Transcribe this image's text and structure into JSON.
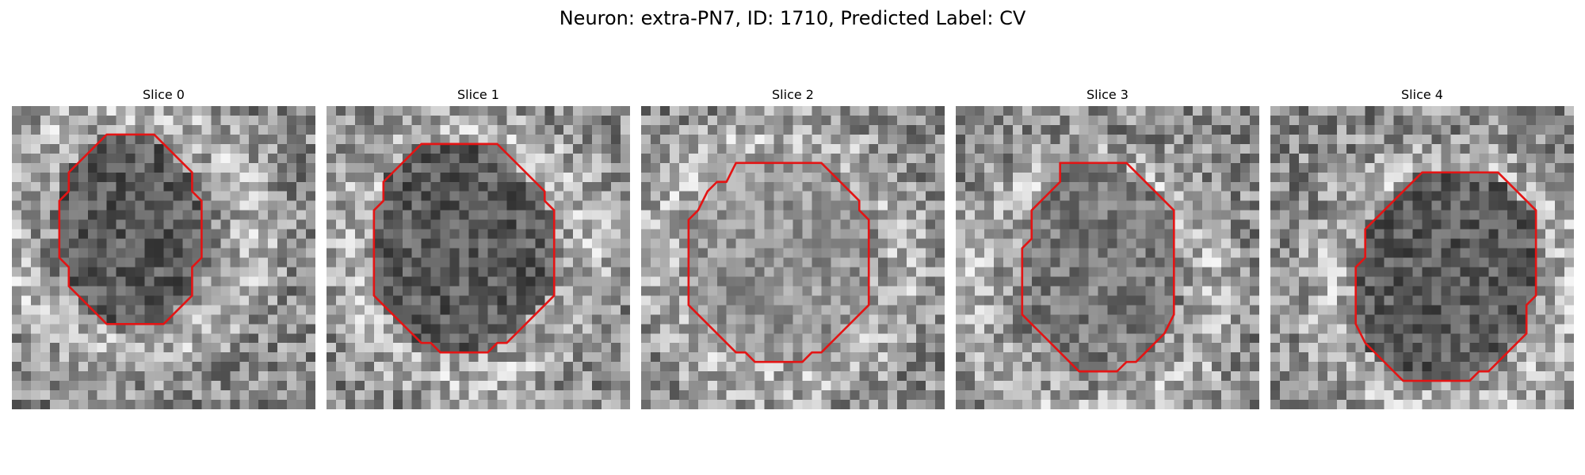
{
  "figure": {
    "title": "Neuron: extra-PN7, ID: 1710, Predicted Label: CV"
  },
  "style": {
    "contour_color": "#e31414"
  },
  "image_grid": {
    "rows": 32,
    "cols": 32
  },
  "panels": [
    {
      "title": "Slice 0",
      "seed": 11,
      "interior_tone": "dark",
      "outline": [
        [
          10,
          3
        ],
        [
          15,
          3
        ],
        [
          19,
          7
        ],
        [
          19,
          9
        ],
        [
          20,
          10
        ],
        [
          20,
          16
        ],
        [
          19,
          17
        ],
        [
          19,
          20
        ],
        [
          16,
          23
        ],
        [
          10,
          23
        ],
        [
          6,
          19
        ],
        [
          6,
          17
        ],
        [
          5,
          16
        ],
        [
          5,
          10
        ],
        [
          6,
          9
        ],
        [
          6,
          7
        ]
      ]
    },
    {
      "title": "Slice 1",
      "seed": 23,
      "interior_tone": "dark",
      "outline": [
        [
          10,
          4
        ],
        [
          18,
          4
        ],
        [
          22,
          8
        ],
        [
          23,
          9
        ],
        [
          23,
          10
        ],
        [
          24,
          11
        ],
        [
          24,
          20
        ],
        [
          22,
          22
        ],
        [
          20,
          24
        ],
        [
          19,
          25
        ],
        [
          18,
          25
        ],
        [
          17,
          26
        ],
        [
          12,
          26
        ],
        [
          11,
          25
        ],
        [
          10,
          25
        ],
        [
          5,
          20
        ],
        [
          5,
          11
        ],
        [
          6,
          10
        ],
        [
          6,
          8
        ],
        [
          9,
          5
        ]
      ]
    },
    {
      "title": "Slice 2",
      "seed": 37,
      "interior_tone": "light",
      "outline": [
        [
          10,
          6
        ],
        [
          19,
          6
        ],
        [
          22,
          9
        ],
        [
          23,
          10
        ],
        [
          23,
          11
        ],
        [
          24,
          12
        ],
        [
          24,
          21
        ],
        [
          21,
          24
        ],
        [
          19,
          26
        ],
        [
          18,
          26
        ],
        [
          17,
          27
        ],
        [
          12,
          27
        ],
        [
          11,
          26
        ],
        [
          10,
          26
        ],
        [
          5,
          21
        ],
        [
          5,
          12
        ],
        [
          6,
          11
        ],
        [
          7,
          9
        ],
        [
          8,
          8
        ],
        [
          9,
          8
        ]
      ]
    },
    {
      "title": "Slice 3",
      "seed": 53,
      "interior_tone": "medium",
      "outline": [
        [
          11,
          6
        ],
        [
          18,
          6
        ],
        [
          21,
          9
        ],
        [
          23,
          11
        ],
        [
          23,
          22
        ],
        [
          22,
          24
        ],
        [
          21,
          25
        ],
        [
          20,
          26
        ],
        [
          19,
          27
        ],
        [
          18,
          27
        ],
        [
          17,
          28
        ],
        [
          13,
          28
        ],
        [
          12,
          27
        ],
        [
          11,
          26
        ],
        [
          10,
          25
        ],
        [
          9,
          24
        ],
        [
          8,
          23
        ],
        [
          7,
          22
        ],
        [
          7,
          15
        ],
        [
          8,
          14
        ],
        [
          8,
          11
        ],
        [
          11,
          8
        ]
      ]
    },
    {
      "title": "Slice 4",
      "seed": 71,
      "interior_tone": "dark",
      "outline": [
        [
          16,
          7
        ],
        [
          24,
          7
        ],
        [
          27,
          10
        ],
        [
          28,
          11
        ],
        [
          28,
          20
        ],
        [
          27,
          21
        ],
        [
          27,
          24
        ],
        [
          24,
          27
        ],
        [
          23,
          28
        ],
        [
          22,
          28
        ],
        [
          21,
          29
        ],
        [
          14,
          29
        ],
        [
          13,
          28
        ],
        [
          10,
          25
        ],
        [
          9,
          23
        ],
        [
          9,
          17
        ],
        [
          10,
          16
        ],
        [
          10,
          13
        ],
        [
          14,
          9
        ]
      ]
    }
  ]
}
